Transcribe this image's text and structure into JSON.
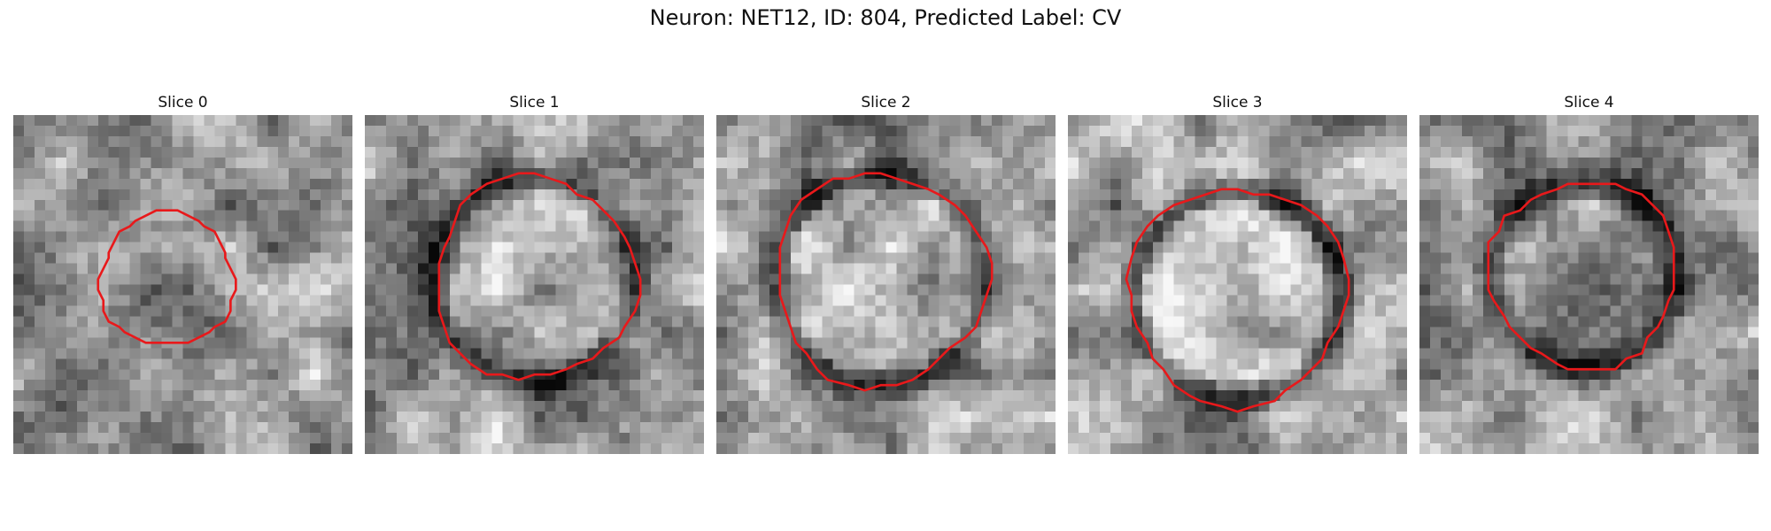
{
  "figure": {
    "title": "Neuron: NET12, ID: 804, Predicted Label: CV"
  },
  "panels": [
    {
      "title": "Slice 0"
    },
    {
      "title": "Slice 1"
    },
    {
      "title": "Slice 2"
    },
    {
      "title": "Slice 3"
    },
    {
      "title": "Slice 4"
    }
  ],
  "colors": {
    "contour": "#e8191b",
    "background": "#ffffff"
  }
}
